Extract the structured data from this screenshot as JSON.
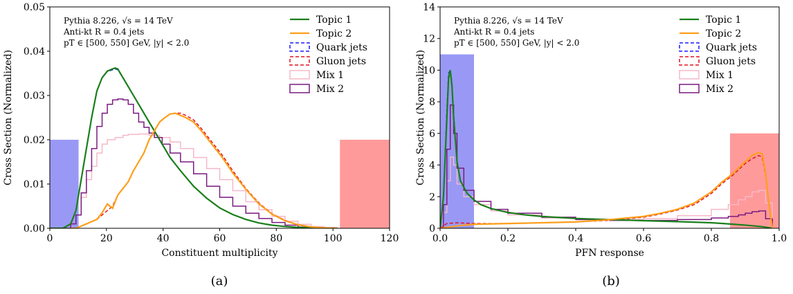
{
  "chart_data": [
    {
      "type": "line",
      "panel_label": "(a)",
      "xlabel": "Constituent multiplicity",
      "ylabel": "Cross Section (Normalized)",
      "xlim": [
        0,
        130
      ],
      "ylim": [
        0,
        0.05
      ],
      "xticks": [
        "0",
        "20",
        "40",
        "60",
        "80",
        "100",
        "120"
      ],
      "yticks": [
        "0.00",
        "0.01",
        "0.02",
        "0.03",
        "0.04",
        "0.05"
      ],
      "grid": false,
      "legend_position": "top-right",
      "annotations": [
        "Pythia 8.226, √s = 14 TeV",
        "Anti-kt R = 0.4 jets",
        "pT ∈ [500, 550] GeV, |y| < 2.0"
      ],
      "regions": [
        {
          "x0": 0,
          "x1": 11,
          "y": 0.02,
          "color": "#9999f5"
        },
        {
          "x0": 111,
          "x1": 130,
          "y": 0.02,
          "color": "#ff9a9a"
        }
      ],
      "series": [
        {
          "name": "Topic 1",
          "style": "solid",
          "color": "#1a7f1a",
          "x": [
            0,
            5,
            8,
            10,
            12,
            14,
            16,
            18,
            20,
            22,
            24,
            25,
            26,
            28,
            30,
            32,
            35,
            38,
            40,
            43,
            46,
            50,
            55,
            60,
            65,
            70,
            75,
            80,
            85,
            90,
            95,
            100,
            105,
            110
          ],
          "y": [
            0,
            0,
            0.001,
            0.004,
            0.011,
            0.018,
            0.025,
            0.031,
            0.034,
            0.0355,
            0.036,
            0.0362,
            0.036,
            0.034,
            0.032,
            0.03,
            0.027,
            0.024,
            0.022,
            0.019,
            0.016,
            0.013,
            0.0095,
            0.0068,
            0.0046,
            0.0031,
            0.002,
            0.0012,
            0.0007,
            0.0004,
            0.0002,
            0.0001,
            0,
            0
          ]
        },
        {
          "name": "Topic 2",
          "style": "solid",
          "color": "#ff9e1b",
          "x": [
            8,
            10,
            14,
            18,
            20,
            22,
            24,
            26,
            28,
            30,
            32,
            34,
            36,
            38,
            40,
            42,
            44,
            46,
            48,
            50,
            52,
            55,
            58,
            62,
            66,
            70,
            75,
            80,
            85,
            90,
            95,
            100,
            105,
            110
          ],
          "y": [
            0,
            0,
            0.001,
            0.002,
            0.0035,
            0.0055,
            0.0045,
            0.0075,
            0.009,
            0.0105,
            0.013,
            0.015,
            0.017,
            0.02,
            0.022,
            0.024,
            0.025,
            0.0258,
            0.026,
            0.0255,
            0.025,
            0.024,
            0.022,
            0.019,
            0.016,
            0.0125,
            0.0088,
            0.0055,
            0.0032,
            0.0017,
            0.0008,
            0.0003,
            0.0001,
            0
          ]
        },
        {
          "name": "Quark jets",
          "style": "dashed",
          "color": "#1a1aff",
          "x": [
            0,
            5,
            8,
            10,
            12,
            14,
            16,
            18,
            20,
            22,
            24,
            25,
            26,
            28,
            30,
            32,
            35,
            38,
            40,
            43,
            46,
            50,
            55,
            60,
            65,
            70,
            75,
            80,
            85,
            90,
            95,
            100,
            105,
            110
          ],
          "y": [
            0,
            0,
            0.001,
            0.004,
            0.011,
            0.018,
            0.025,
            0.031,
            0.034,
            0.0354,
            0.0358,
            0.036,
            0.0358,
            0.034,
            0.032,
            0.03,
            0.027,
            0.024,
            0.022,
            0.019,
            0.016,
            0.013,
            0.0095,
            0.0068,
            0.0046,
            0.0031,
            0.002,
            0.0012,
            0.0007,
            0.0004,
            0.0002,
            0.0001,
            0,
            0
          ]
        },
        {
          "name": "Gluon jets",
          "style": "dashed",
          "color": "#e0141e",
          "x": [
            8,
            10,
            14,
            18,
            20,
            22,
            24,
            26,
            28,
            30,
            32,
            34,
            36,
            38,
            40,
            42,
            44,
            46,
            48,
            50,
            52,
            55,
            58,
            62,
            66,
            70,
            75,
            80,
            85,
            90,
            95,
            100,
            105,
            110
          ],
          "y": [
            0,
            0,
            0.001,
            0.002,
            0.003,
            0.004,
            0.005,
            0.0075,
            0.009,
            0.0105,
            0.013,
            0.015,
            0.017,
            0.02,
            0.022,
            0.024,
            0.025,
            0.0258,
            0.026,
            0.026,
            0.0255,
            0.0245,
            0.0225,
            0.0195,
            0.0165,
            0.013,
            0.009,
            0.0057,
            0.0033,
            0.0018,
            0.0008,
            0.0003,
            0.0001,
            0
          ]
        },
        {
          "name": "Mix 1",
          "style": "step",
          "color": "#f5b8c8",
          "x": [
            0,
            5,
            8,
            10,
            12,
            14,
            16,
            18,
            20,
            22,
            25,
            28,
            30,
            34,
            38,
            42,
            46,
            50,
            55,
            60,
            65,
            70,
            75,
            80,
            85,
            90,
            95,
            100,
            105,
            110
          ],
          "y": [
            0,
            0,
            0.001,
            0.003,
            0.007,
            0.011,
            0.014,
            0.017,
            0.019,
            0.02,
            0.0205,
            0.021,
            0.0212,
            0.0213,
            0.021,
            0.0205,
            0.0195,
            0.018,
            0.016,
            0.0135,
            0.011,
            0.0085,
            0.006,
            0.0042,
            0.0027,
            0.0016,
            0.0009,
            0.0004,
            0.0002,
            0
          ]
        },
        {
          "name": "Mix 2",
          "style": "step",
          "color": "#7a1a80",
          "x": [
            0,
            5,
            8,
            10,
            12,
            14,
            16,
            18,
            20,
            22,
            24,
            26,
            28,
            30,
            32,
            34,
            36,
            38,
            40,
            43,
            46,
            50,
            55,
            60,
            65,
            70,
            75,
            80,
            85,
            90,
            95,
            100,
            105,
            110
          ],
          "y": [
            0,
            0,
            0.001,
            0.003,
            0.008,
            0.013,
            0.018,
            0.023,
            0.026,
            0.028,
            0.029,
            0.0292,
            0.029,
            0.028,
            0.026,
            0.024,
            0.0228,
            0.0215,
            0.0205,
            0.019,
            0.017,
            0.015,
            0.0123,
            0.0095,
            0.007,
            0.005,
            0.0034,
            0.0022,
            0.0013,
            0.0007,
            0.0003,
            0.0001,
            0,
            0
          ]
        }
      ]
    },
    {
      "type": "line",
      "panel_label": "(b)",
      "xlabel": "PFN response",
      "ylabel": "Cross Section (Normalized)",
      "xlim": [
        0,
        1
      ],
      "ylim": [
        0,
        14
      ],
      "xticks": [
        "0.0",
        "0.2",
        "0.4",
        "0.6",
        "0.8",
        "1.0"
      ],
      "yticks": [
        "0",
        "2",
        "4",
        "6",
        "8",
        "10",
        "12",
        "14"
      ],
      "grid": false,
      "legend_position": "top-right",
      "annotations": [
        "Pythia 8.226, √s = 14 TeV",
        "Anti-kt R = 0.4 jets",
        "pT ∈ [500, 550] GeV, |y| < 2.0"
      ],
      "regions": [
        {
          "x0": 0,
          "x1": 0.1,
          "y": 11,
          "color": "#9999f5"
        },
        {
          "x0": 0.855,
          "x1": 1.0,
          "y": 6,
          "color": "#ff9a9a"
        }
      ],
      "series": [
        {
          "name": "Topic 1",
          "style": "solid",
          "color": "#1a7f1a",
          "x": [
            0.0,
            0.01,
            0.02,
            0.025,
            0.03,
            0.035,
            0.04,
            0.05,
            0.06,
            0.08,
            0.1,
            0.12,
            0.15,
            0.2,
            0.25,
            0.3,
            0.4,
            0.5,
            0.6,
            0.7,
            0.8,
            0.85,
            0.9,
            0.95,
            0.98
          ],
          "y": [
            0,
            2,
            7,
            9.5,
            10,
            9,
            7,
            4.2,
            3.0,
            2.2,
            1.8,
            1.5,
            1.25,
            1.0,
            0.85,
            0.75,
            0.62,
            0.55,
            0.48,
            0.42,
            0.35,
            0.28,
            0.2,
            0.1,
            0
          ]
        },
        {
          "name": "Topic 2",
          "style": "solid",
          "color": "#ff9e1b",
          "x": [
            0.0,
            0.02,
            0.05,
            0.1,
            0.2,
            0.3,
            0.4,
            0.5,
            0.6,
            0.65,
            0.7,
            0.75,
            0.8,
            0.83,
            0.86,
            0.88,
            0.9,
            0.92,
            0.94,
            0.95,
            0.96,
            0.97,
            0.98
          ],
          "y": [
            0,
            0.05,
            0.15,
            0.25,
            0.3,
            0.35,
            0.4,
            0.55,
            0.75,
            0.95,
            1.2,
            1.6,
            2.3,
            2.9,
            3.4,
            3.8,
            4.2,
            4.6,
            4.8,
            4.7,
            3.5,
            1.5,
            0
          ]
        },
        {
          "name": "Quark jets",
          "style": "dashed",
          "color": "#1a1aff",
          "x": [
            0.0,
            0.01,
            0.02,
            0.025,
            0.03,
            0.035,
            0.04,
            0.05,
            0.06,
            0.08,
            0.1,
            0.12,
            0.15,
            0.2,
            0.25,
            0.3,
            0.4,
            0.5,
            0.6,
            0.7,
            0.8,
            0.85,
            0.9,
            0.95,
            0.98
          ],
          "y": [
            0,
            2,
            7.5,
            9.8,
            10,
            9.2,
            7.2,
            4.3,
            3.0,
            2.2,
            1.8,
            1.5,
            1.25,
            1.0,
            0.85,
            0.75,
            0.62,
            0.55,
            0.48,
            0.42,
            0.35,
            0.28,
            0.2,
            0.1,
            0
          ]
        },
        {
          "name": "Gluon jets",
          "style": "dashed",
          "color": "#e0141e",
          "x": [
            0.0,
            0.02,
            0.05,
            0.1,
            0.2,
            0.3,
            0.4,
            0.5,
            0.6,
            0.65,
            0.7,
            0.75,
            0.8,
            0.83,
            0.86,
            0.88,
            0.9,
            0.92,
            0.94,
            0.95,
            0.96,
            0.97,
            0.98
          ],
          "y": [
            0,
            0.3,
            0.35,
            0.3,
            0.3,
            0.35,
            0.4,
            0.5,
            0.7,
            0.9,
            1.15,
            1.5,
            2.2,
            2.8,
            3.3,
            3.7,
            4.1,
            4.4,
            4.6,
            4.5,
            3.4,
            1.5,
            0
          ]
        },
        {
          "name": "Mix 1",
          "style": "step",
          "color": "#f5b8c8",
          "x": [
            0.0,
            0.01,
            0.02,
            0.03,
            0.04,
            0.05,
            0.07,
            0.1,
            0.15,
            0.2,
            0.3,
            0.4,
            0.5,
            0.6,
            0.7,
            0.8,
            0.85,
            0.88,
            0.9,
            0.92,
            0.94,
            0.96,
            0.98
          ],
          "y": [
            0,
            1,
            3,
            4.5,
            4,
            2.8,
            2.0,
            1.5,
            1.1,
            0.85,
            0.65,
            0.55,
            0.55,
            0.62,
            0.8,
            1.2,
            1.5,
            1.8,
            2.0,
            2.3,
            2.4,
            1.6,
            0
          ]
        },
        {
          "name": "Mix 2",
          "style": "step",
          "color": "#7a1a80",
          "x": [
            0.0,
            0.01,
            0.02,
            0.03,
            0.04,
            0.05,
            0.07,
            0.1,
            0.15,
            0.2,
            0.3,
            0.4,
            0.5,
            0.6,
            0.7,
            0.8,
            0.85,
            0.88,
            0.9,
            0.92,
            0.94,
            0.96,
            0.98
          ],
          "y": [
            0,
            1.5,
            5,
            7.8,
            6,
            3.8,
            2.4,
            1.7,
            1.2,
            0.95,
            0.7,
            0.55,
            0.5,
            0.5,
            0.55,
            0.65,
            0.75,
            0.85,
            0.95,
            1.05,
            1.1,
            0.6,
            0
          ]
        }
      ]
    }
  ]
}
